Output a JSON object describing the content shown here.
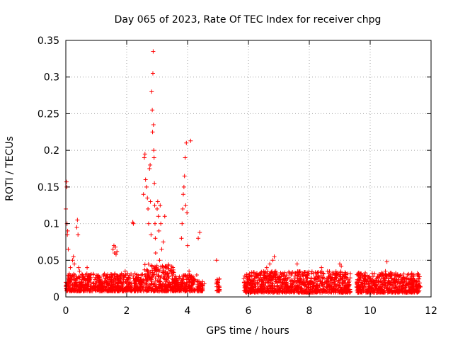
{
  "chart_data": {
    "type": "scatter",
    "title": "Day 065 of 2023, Rate Of TEC Index for receiver chpg",
    "xlabel": "GPS time / hours",
    "ylabel": "ROTI / TECUs",
    "xlim": [
      0,
      12
    ],
    "ylim": [
      0,
      0.35
    ],
    "xticks": [
      0,
      2,
      4,
      6,
      8,
      10,
      12
    ],
    "xtick_labels": [
      "0",
      "2",
      "4",
      "6",
      "8",
      "10",
      "12"
    ],
    "yticks": [
      0,
      0.05,
      0.1,
      0.15,
      0.2,
      0.25,
      0.3,
      0.35
    ],
    "ytick_labels": [
      "0",
      "0.05",
      "0.1",
      "0.15",
      "0.2",
      "0.25",
      "0.3",
      "0.35"
    ],
    "grid": true,
    "marker": "plus",
    "series": [
      {
        "name": "ROTI",
        "color": "#ff0000",
        "points": [
          [
            0.0,
            0.02
          ],
          [
            0.0,
            0.12
          ],
          [
            0.02,
            0.157
          ],
          [
            0.03,
            0.15
          ],
          [
            0.04,
            0.1
          ],
          [
            0.05,
            0.085
          ],
          [
            0.06,
            0.09
          ],
          [
            0.08,
            0.065
          ],
          [
            0.1,
            0.03
          ],
          [
            0.12,
            0.015
          ],
          [
            0.15,
            0.04
          ],
          [
            0.18,
            0.025
          ],
          [
            0.22,
            0.05
          ],
          [
            0.25,
            0.055
          ],
          [
            0.28,
            0.045
          ],
          [
            0.3,
            0.03
          ],
          [
            0.33,
            0.02
          ],
          [
            0.36,
            0.095
          ],
          [
            0.38,
            0.105
          ],
          [
            0.4,
            0.085
          ],
          [
            0.42,
            0.04
          ],
          [
            0.45,
            0.035
          ],
          [
            0.5,
            0.02
          ],
          [
            0.55,
            0.03
          ],
          [
            0.6,
            0.025
          ],
          [
            0.65,
            0.015
          ],
          [
            0.7,
            0.04
          ],
          [
            0.75,
            0.02
          ],
          [
            0.8,
            0.03
          ],
          [
            0.9,
            0.018
          ],
          [
            1.0,
            0.015
          ],
          [
            1.1,
            0.02
          ],
          [
            1.2,
            0.018
          ],
          [
            1.3,
            0.012
          ],
          [
            1.4,
            0.015
          ],
          [
            1.5,
            0.02
          ],
          [
            1.55,
            0.065
          ],
          [
            1.58,
            0.07
          ],
          [
            1.6,
            0.06
          ],
          [
            1.63,
            0.068
          ],
          [
            1.65,
            0.058
          ],
          [
            1.68,
            0.062
          ],
          [
            1.7,
            0.015
          ],
          [
            1.8,
            0.02
          ],
          [
            1.9,
            0.03
          ],
          [
            1.95,
            0.035
          ],
          [
            2.0,
            0.018
          ],
          [
            2.1,
            0.02
          ],
          [
            2.2,
            0.102
          ],
          [
            2.22,
            0.1
          ],
          [
            2.3,
            0.025
          ],
          [
            2.4,
            0.018
          ],
          [
            2.5,
            0.02
          ],
          [
            2.55,
            0.14
          ],
          [
            2.58,
            0.19
          ],
          [
            2.6,
            0.195
          ],
          [
            2.62,
            0.16
          ],
          [
            2.65,
            0.15
          ],
          [
            2.68,
            0.135
          ],
          [
            2.7,
            0.12
          ],
          [
            2.72,
            0.1
          ],
          [
            2.75,
            0.175
          ],
          [
            2.77,
            0.18
          ],
          [
            2.78,
            0.13
          ],
          [
            2.8,
            0.085
          ],
          [
            2.82,
            0.28
          ],
          [
            2.84,
            0.255
          ],
          [
            2.85,
            0.225
          ],
          [
            2.86,
            0.305
          ],
          [
            2.87,
            0.335
          ],
          [
            2.88,
            0.235
          ],
          [
            2.89,
            0.2
          ],
          [
            2.9,
            0.19
          ],
          [
            2.91,
            0.155
          ],
          [
            2.92,
            0.125
          ],
          [
            2.93,
            0.1
          ],
          [
            2.94,
            0.08
          ],
          [
            2.95,
            0.06
          ],
          [
            2.96,
            0.04
          ],
          [
            2.98,
            0.035
          ],
          [
            3.0,
            0.12
          ],
          [
            3.02,
            0.13
          ],
          [
            3.04,
            0.11
          ],
          [
            3.06,
            0.09
          ],
          [
            3.08,
            0.05
          ],
          [
            3.1,
            0.125
          ],
          [
            3.12,
            0.1
          ],
          [
            3.15,
            0.065
          ],
          [
            3.2,
            0.075
          ],
          [
            3.25,
            0.11
          ],
          [
            3.3,
            0.04
          ],
          [
            3.4,
            0.02
          ],
          [
            3.5,
            0.025
          ],
          [
            3.6,
            0.018
          ],
          [
            3.7,
            0.02
          ],
          [
            3.8,
            0.08
          ],
          [
            3.82,
            0.1
          ],
          [
            3.84,
            0.12
          ],
          [
            3.86,
            0.14
          ],
          [
            3.88,
            0.15
          ],
          [
            3.9,
            0.165
          ],
          [
            3.92,
            0.19
          ],
          [
            3.94,
            0.125
          ],
          [
            3.96,
            0.21
          ],
          [
            3.98,
            0.115
          ],
          [
            4.0,
            0.07
          ],
          [
            4.05,
            0.035
          ],
          [
            4.1,
            0.213
          ],
          [
            4.15,
            0.02
          ],
          [
            4.2,
            0.025
          ],
          [
            4.3,
            0.03
          ],
          [
            4.35,
            0.08
          ],
          [
            4.4,
            0.088
          ],
          [
            4.5,
            0.015
          ],
          [
            4.55,
            0.018
          ],
          [
            4.95,
            0.05
          ],
          [
            5.0,
            0.02
          ],
          [
            5.02,
            0.015
          ],
          [
            5.05,
            0.01
          ],
          [
            5.85,
            0.025
          ],
          [
            5.9,
            0.015
          ],
          [
            6.0,
            0.02
          ],
          [
            6.1,
            0.018
          ],
          [
            6.2,
            0.025
          ],
          [
            6.3,
            0.02
          ],
          [
            6.4,
            0.015
          ],
          [
            6.5,
            0.03
          ],
          [
            6.6,
            0.04
          ],
          [
            6.7,
            0.045
          ],
          [
            6.8,
            0.05
          ],
          [
            6.85,
            0.055
          ],
          [
            6.9,
            0.035
          ],
          [
            7.0,
            0.025
          ],
          [
            7.2,
            0.02
          ],
          [
            7.4,
            0.03
          ],
          [
            7.6,
            0.045
          ],
          [
            7.7,
            0.025
          ],
          [
            7.8,
            0.02
          ],
          [
            8.0,
            0.018
          ],
          [
            8.2,
            0.025
          ],
          [
            8.4,
            0.04
          ],
          [
            8.6,
            0.035
          ],
          [
            8.8,
            0.02
          ],
          [
            9.0,
            0.045
          ],
          [
            9.05,
            0.042
          ],
          [
            9.2,
            0.025
          ],
          [
            9.3,
            0.02
          ],
          [
            9.6,
            0.03
          ],
          [
            9.7,
            0.02
          ],
          [
            9.8,
            0.015
          ],
          [
            10.0,
            0.025
          ],
          [
            10.2,
            0.02
          ],
          [
            10.4,
            0.03
          ],
          [
            10.5,
            0.035
          ],
          [
            10.55,
            0.048
          ],
          [
            10.6,
            0.025
          ],
          [
            10.8,
            0.02
          ],
          [
            11.0,
            0.03
          ],
          [
            11.2,
            0.025
          ],
          [
            11.4,
            0.02
          ],
          [
            11.55,
            0.03
          ],
          [
            11.6,
            0.015
          ]
        ]
      }
    ],
    "dense_bands": [
      {
        "x_start": 0.0,
        "x_end": 2.55,
        "y_min": 0.008,
        "y_max": 0.032
      },
      {
        "x_start": 2.55,
        "x_end": 3.55,
        "y_min": 0.008,
        "y_max": 0.045
      },
      {
        "x_start": 3.55,
        "x_end": 4.25,
        "y_min": 0.008,
        "y_max": 0.03
      },
      {
        "x_start": 4.3,
        "x_end": 4.5,
        "y_min": 0.008,
        "y_max": 0.022
      },
      {
        "x_start": 4.95,
        "x_end": 5.05,
        "y_min": 0.008,
        "y_max": 0.025
      },
      {
        "x_start": 5.85,
        "x_end": 9.35,
        "y_min": 0.006,
        "y_max": 0.035
      },
      {
        "x_start": 9.55,
        "x_end": 11.65,
        "y_min": 0.006,
        "y_max": 0.033
      }
    ]
  }
}
